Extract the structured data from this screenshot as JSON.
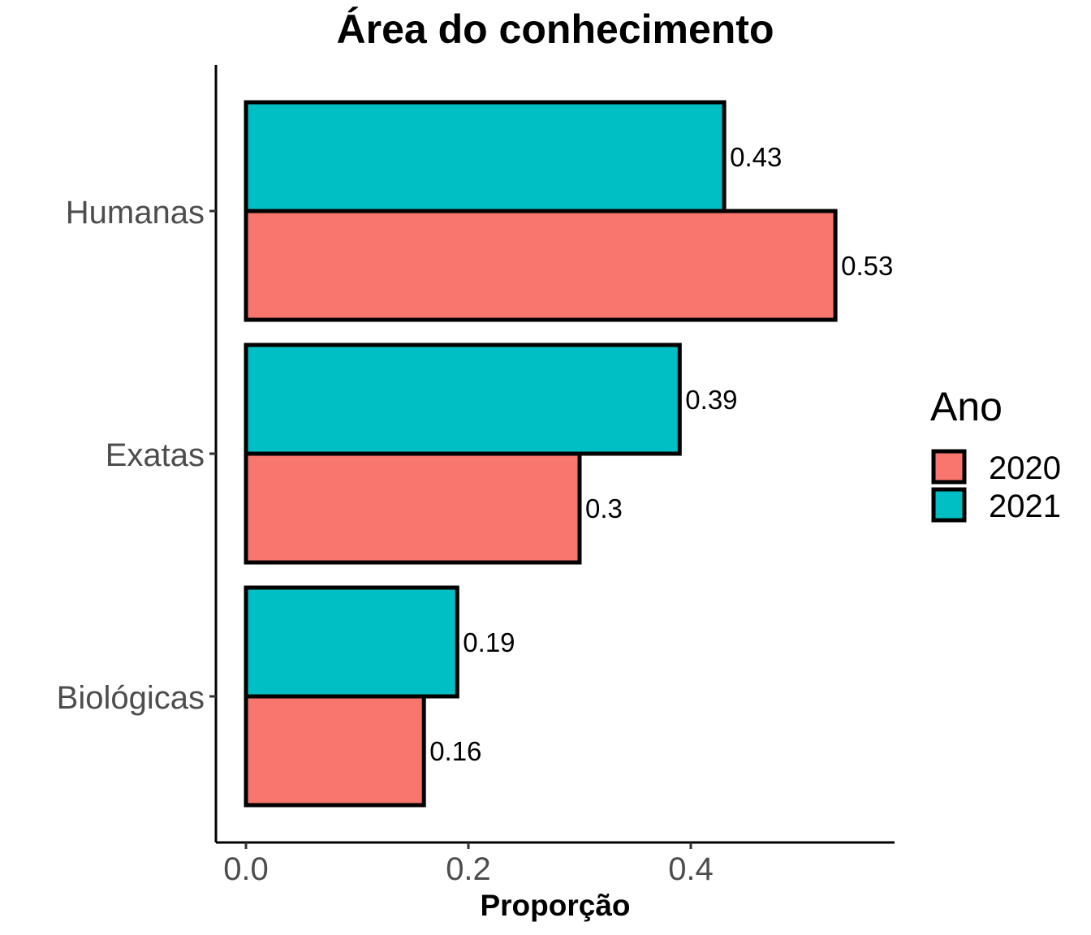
{
  "chart_data": {
    "type": "bar",
    "orientation": "horizontal",
    "title": "Área do conhecimento",
    "xlabel": "Proporção",
    "ylabel": "",
    "categories": [
      "Biológicas",
      "Exatas",
      "Humanas"
    ],
    "xlim": [
      0,
      0.58
    ],
    "x_ticks": [
      0.0,
      0.2,
      0.4
    ],
    "x_tick_labels": [
      "0.0",
      "0.2",
      "0.4"
    ],
    "grid": false,
    "legend": {
      "title": "Ano",
      "position": "right"
    },
    "series": [
      {
        "name": "2020",
        "color": "#F8766D",
        "values": [
          0.16,
          0.3,
          0.53
        ],
        "labels": [
          "0.16",
          "0.3",
          "0.53"
        ]
      },
      {
        "name": "2021",
        "color": "#00BFC4",
        "values": [
          0.19,
          0.39,
          0.43
        ],
        "labels": [
          "0.19",
          "0.39",
          "0.43"
        ]
      }
    ]
  }
}
